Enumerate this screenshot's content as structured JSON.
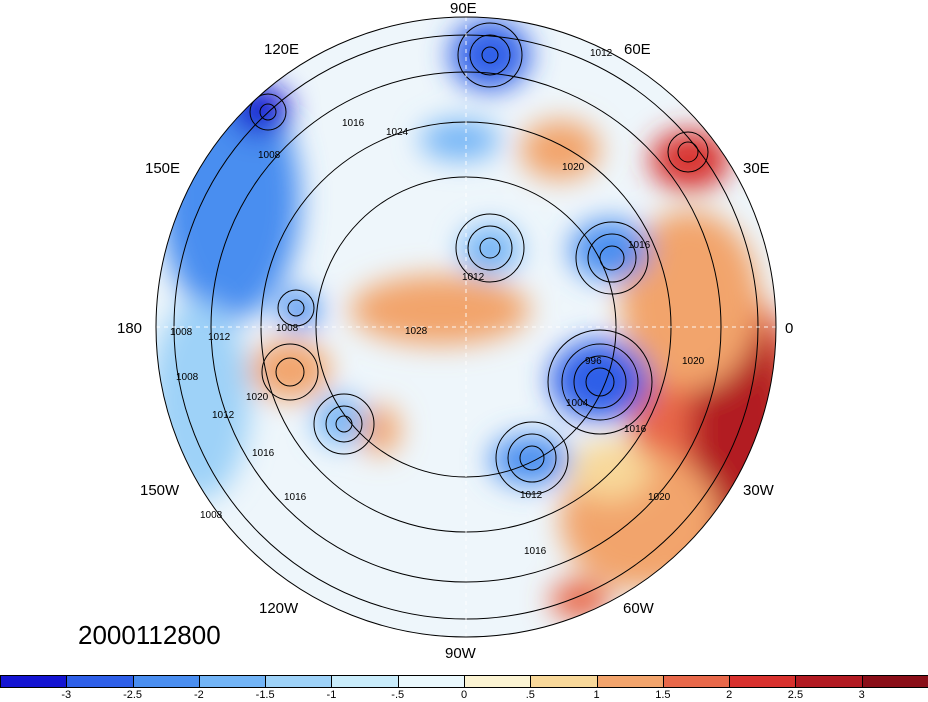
{
  "timestamp": "2000112800",
  "longitude_labels": {
    "lon_90e": "90E",
    "lon_120e": "120E",
    "lon_60e": "60E",
    "lon_150e": "150E",
    "lon_30e": "30E",
    "lon_180": "180",
    "lon_0": "0",
    "lon_150w": "150W",
    "lon_30w": "30W",
    "lon_120w": "120W",
    "lon_60w": "60W",
    "lon_90w": "90W"
  },
  "isobar_labels": [
    "1012",
    "1016",
    "1024",
    "1008",
    "1012",
    "1016",
    "1020",
    "1028",
    "1008",
    "1008",
    "1012",
    "1008",
    "1020",
    "1012",
    "1016",
    "1016",
    "996",
    "1004",
    "1016",
    "1020",
    "1012",
    "1016",
    "1020",
    "1008"
  ],
  "colorbar": {
    "ticks": [
      "-3",
      "-2.5",
      "-2",
      "-1.5",
      "-1",
      "-.5",
      "0",
      ".5",
      "1",
      "1.5",
      "2",
      "2.5",
      "3"
    ],
    "colors": [
      "#1414d2",
      "#2e5fe8",
      "#4a8ef0",
      "#72b4f6",
      "#9ed2f8",
      "#c9ecfb",
      "#eaf8fd",
      "#fbf3d2",
      "#f8d89a",
      "#f2a46c",
      "#e8684a",
      "#d8312e",
      "#b21a22",
      "#8a0e18"
    ]
  }
}
